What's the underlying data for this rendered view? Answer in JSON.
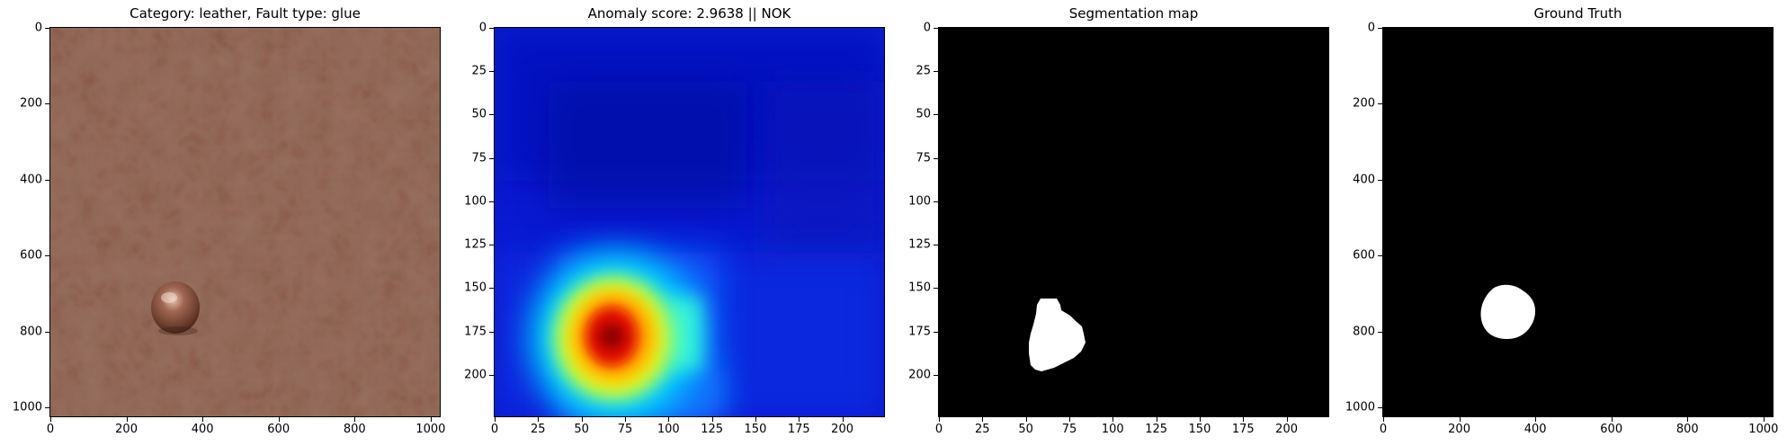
{
  "panels": [
    {
      "title": "Category: leather, Fault type: glue",
      "kind": "image",
      "x_ticks": [
        "0",
        "200",
        "400",
        "600",
        "800",
        "1000"
      ],
      "x_tick_values": [
        0,
        200,
        400,
        600,
        800,
        1000
      ],
      "y_ticks": [
        "0",
        "200",
        "400",
        "600",
        "800",
        "1000"
      ],
      "y_tick_values": [
        0,
        200,
        400,
        600,
        800,
        1000
      ],
      "extent": 1024
    },
    {
      "title": "Anomaly score: 2.9638 || NOK",
      "kind": "heatmap",
      "x_ticks": [
        "0",
        "25",
        "50",
        "75",
        "100",
        "125",
        "150",
        "175",
        "200"
      ],
      "x_tick_values": [
        0,
        25,
        50,
        75,
        100,
        125,
        150,
        175,
        200
      ],
      "y_ticks": [
        "0",
        "25",
        "50",
        "75",
        "100",
        "125",
        "150",
        "175",
        "200"
      ],
      "y_tick_values": [
        0,
        25,
        50,
        75,
        100,
        125,
        150,
        175,
        200
      ],
      "extent": 224
    },
    {
      "title": "Segmentation map",
      "kind": "mask",
      "x_ticks": [
        "0",
        "25",
        "50",
        "75",
        "100",
        "125",
        "150",
        "175",
        "200"
      ],
      "x_tick_values": [
        0,
        25,
        50,
        75,
        100,
        125,
        150,
        175,
        200
      ],
      "y_ticks": [
        "0",
        "25",
        "50",
        "75",
        "100",
        "125",
        "150",
        "175",
        "200"
      ],
      "y_tick_values": [
        0,
        25,
        50,
        75,
        100,
        125,
        150,
        175,
        200
      ],
      "extent": 224
    },
    {
      "title": "Ground Truth",
      "kind": "mask",
      "x_ticks": [
        "0",
        "200",
        "400",
        "600",
        "800",
        "1000"
      ],
      "x_tick_values": [
        0,
        200,
        400,
        600,
        800,
        1000
      ],
      "y_ticks": [
        "0",
        "200",
        "400",
        "600",
        "800",
        "1000"
      ],
      "y_tick_values": [
        0,
        200,
        400,
        600,
        800,
        1000
      ],
      "extent": 1024
    }
  ],
  "colors": {
    "leather": "#7a4a3a",
    "mask_bg": "#000000",
    "mask_fg": "#ffffff",
    "heat_low": "#0a1ad0"
  }
}
